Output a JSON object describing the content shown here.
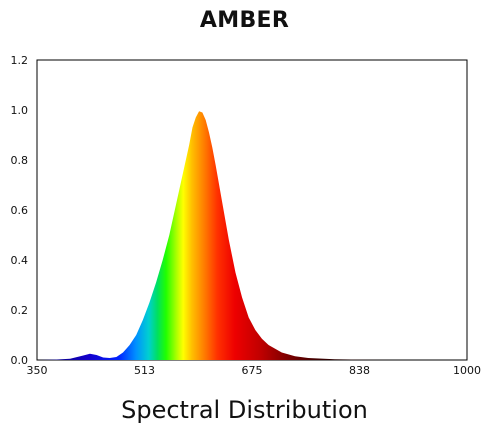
{
  "chart_data": {
    "type": "area",
    "title": "AMBER",
    "xlabel": "Spectral Distribution",
    "ylabel": "",
    "xlim": [
      350,
      1000
    ],
    "ylim": [
      0,
      1.2
    ],
    "x_tick_labels": [
      "350",
      "513",
      "675",
      "838",
      "1000"
    ],
    "y_tick_labels": [
      "0.0",
      "0.2",
      "0.4",
      "0.6",
      "0.8",
      "1.0",
      "1.2"
    ],
    "grid": false,
    "legend": "none",
    "series": [
      {
        "x": [
          350,
          380,
          400,
          420,
          430,
          440,
          450,
          460,
          470,
          480,
          490,
          500,
          510,
          520,
          530,
          540,
          550,
          560,
          570,
          580,
          585,
          590,
          595,
          600,
          605,
          610,
          615,
          620,
          630,
          640,
          650,
          660,
          670,
          680,
          690,
          700,
          720,
          740,
          760,
          800,
          850,
          900,
          1000
        ],
        "values": [
          0.0,
          0.002,
          0.005,
          0.018,
          0.025,
          0.02,
          0.01,
          0.008,
          0.012,
          0.03,
          0.06,
          0.1,
          0.16,
          0.23,
          0.31,
          0.4,
          0.5,
          0.62,
          0.74,
          0.86,
          0.93,
          0.97,
          0.995,
          0.99,
          0.96,
          0.91,
          0.85,
          0.78,
          0.63,
          0.48,
          0.35,
          0.25,
          0.17,
          0.12,
          0.085,
          0.06,
          0.03,
          0.015,
          0.008,
          0.003,
          0.001,
          0.0,
          0.0
        ]
      }
    ]
  }
}
